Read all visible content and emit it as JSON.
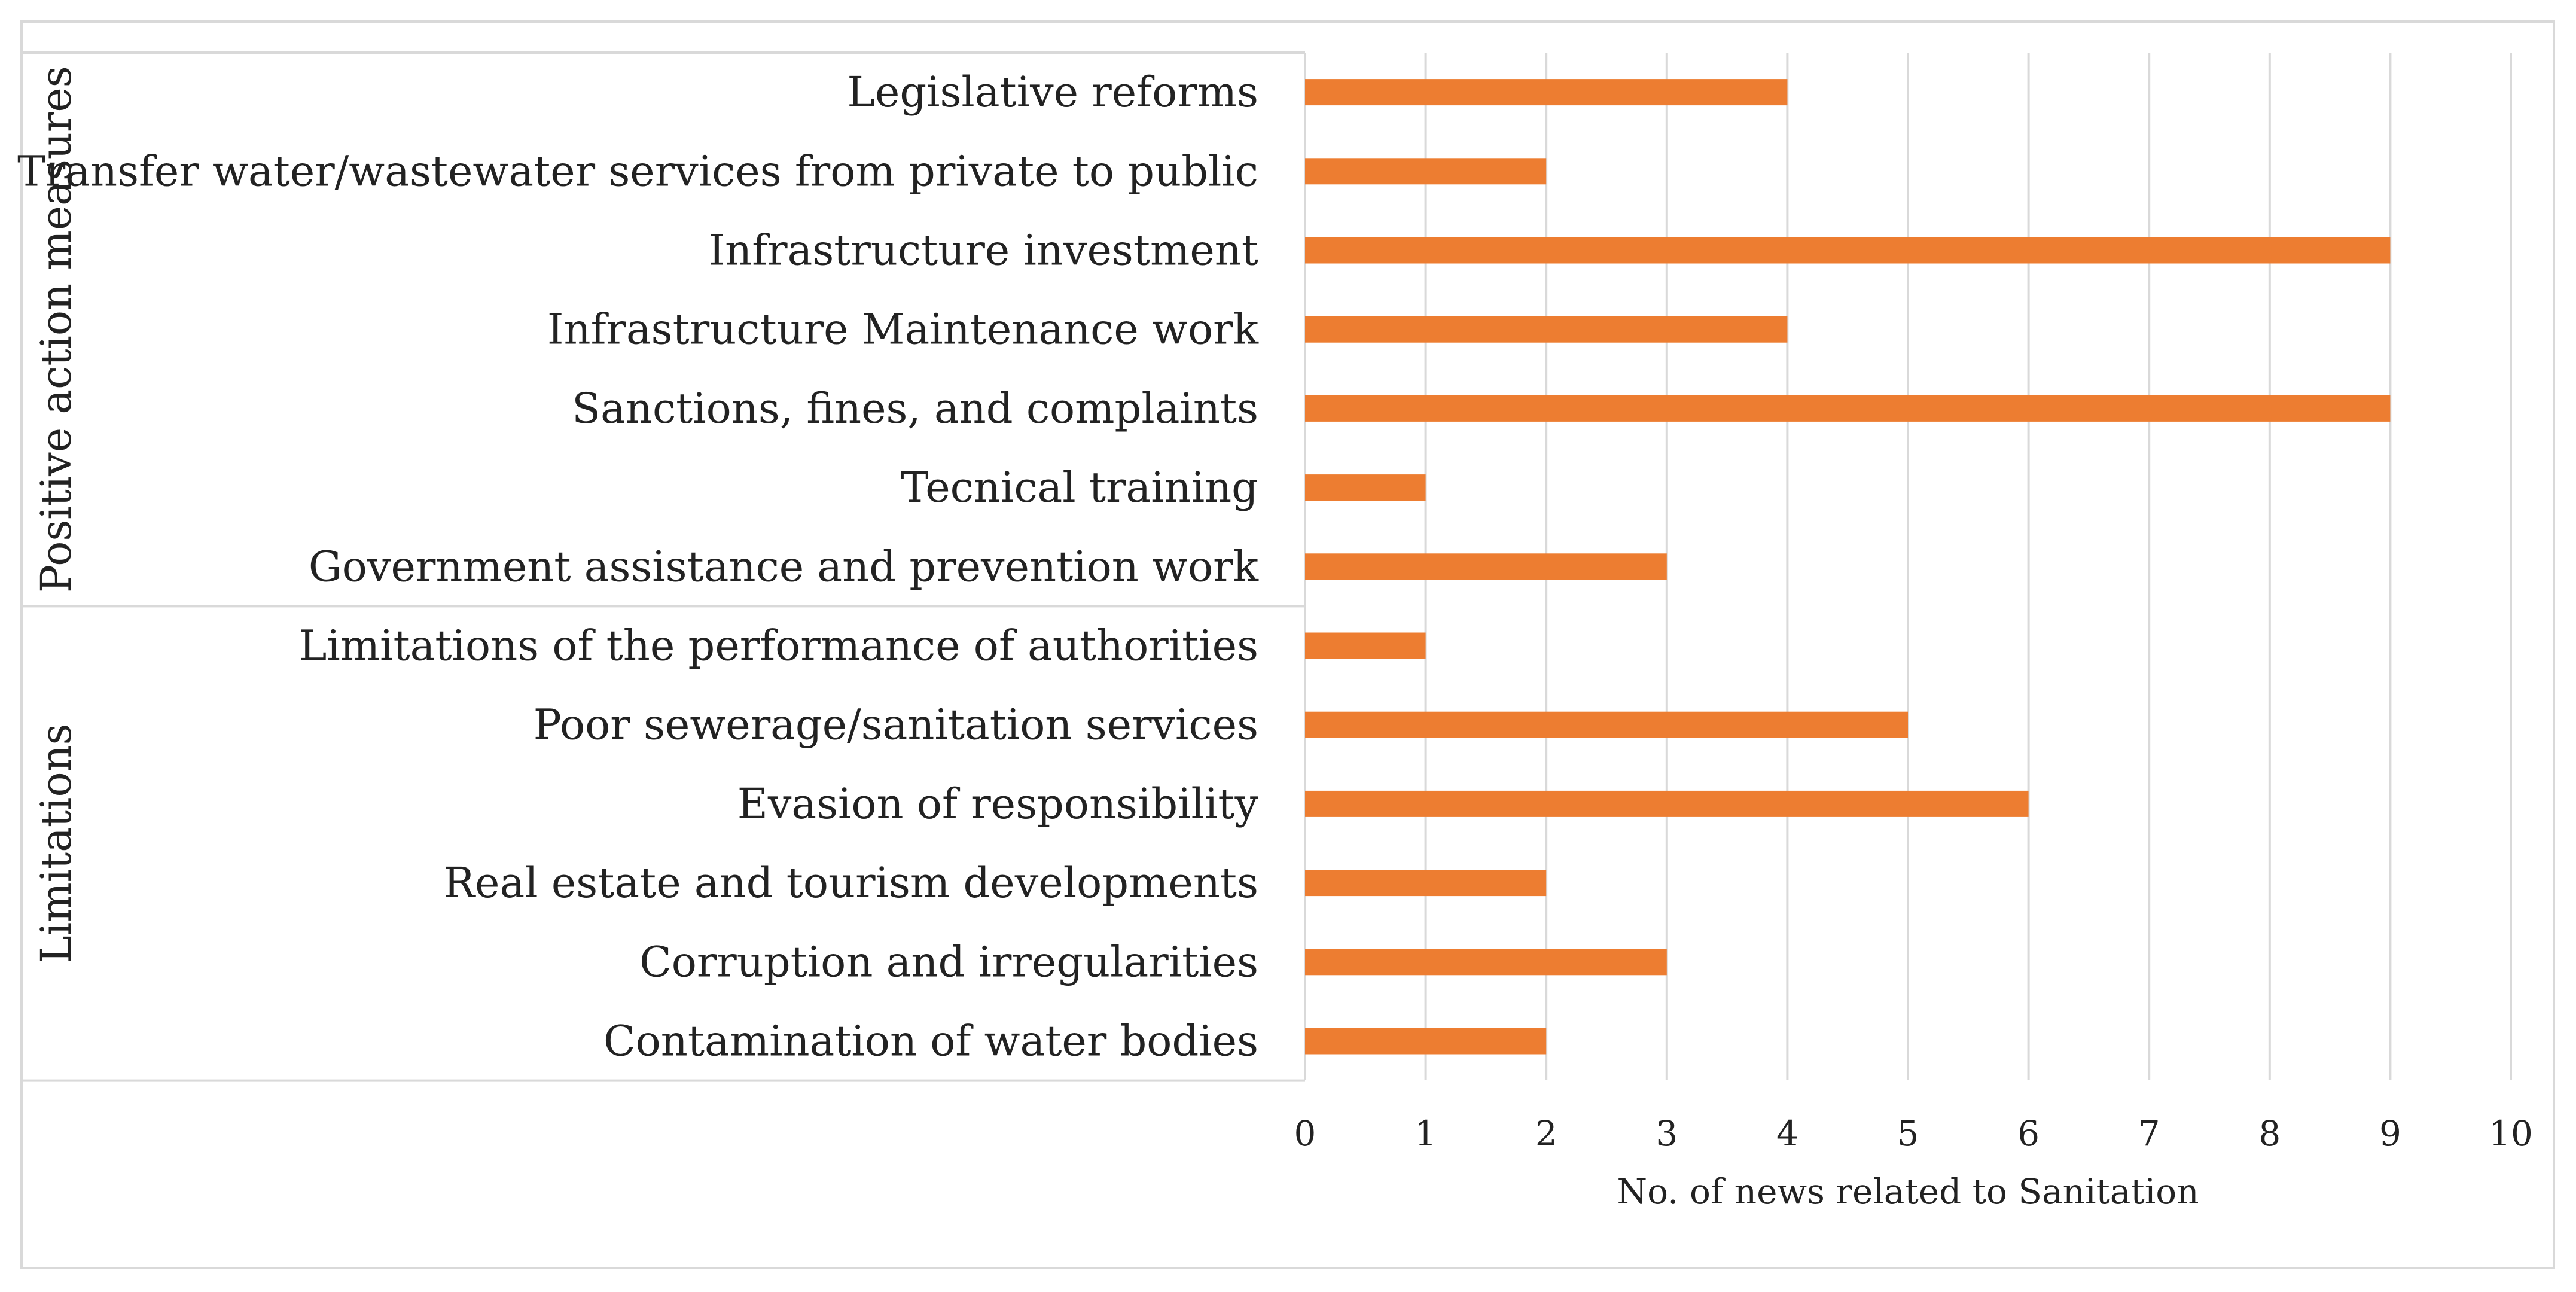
{
  "chart_data": {
    "type": "bar",
    "orientation": "horizontal",
    "groups": [
      {
        "name": "Positive action measures",
        "categories": [
          "Legislative reforms",
          "Transfer water/wastewater services from private to public",
          "Infrastructure investment",
          "Infrastructure Maintenance work",
          "Sanctions, fines, and complaints",
          "Tecnical training",
          "Government assistance and prevention work"
        ],
        "values": [
          4,
          2,
          9,
          4,
          9,
          1,
          3
        ]
      },
      {
        "name": "Limitations",
        "categories": [
          "Limitations of the performance of authorities",
          "Poor sewerage/sanitation services",
          "Evasion of responsibility",
          "Real estate and tourism developments",
          "Corruption and irregularities",
          "Contamination of water bodies"
        ],
        "values": [
          1,
          5,
          6,
          2,
          3,
          2
        ]
      }
    ],
    "xlabel": "No. of news related to Sanitation",
    "ylabel": "",
    "xlim": [
      0,
      10
    ],
    "xticks": [
      "0",
      "1",
      "2",
      "3",
      "4",
      "5",
      "6",
      "7",
      "8",
      "9",
      "10"
    ],
    "grid": "vertical",
    "bar_color": "#ED7D31",
    "grid_color": "#D9D9D9",
    "legend": "none"
  }
}
